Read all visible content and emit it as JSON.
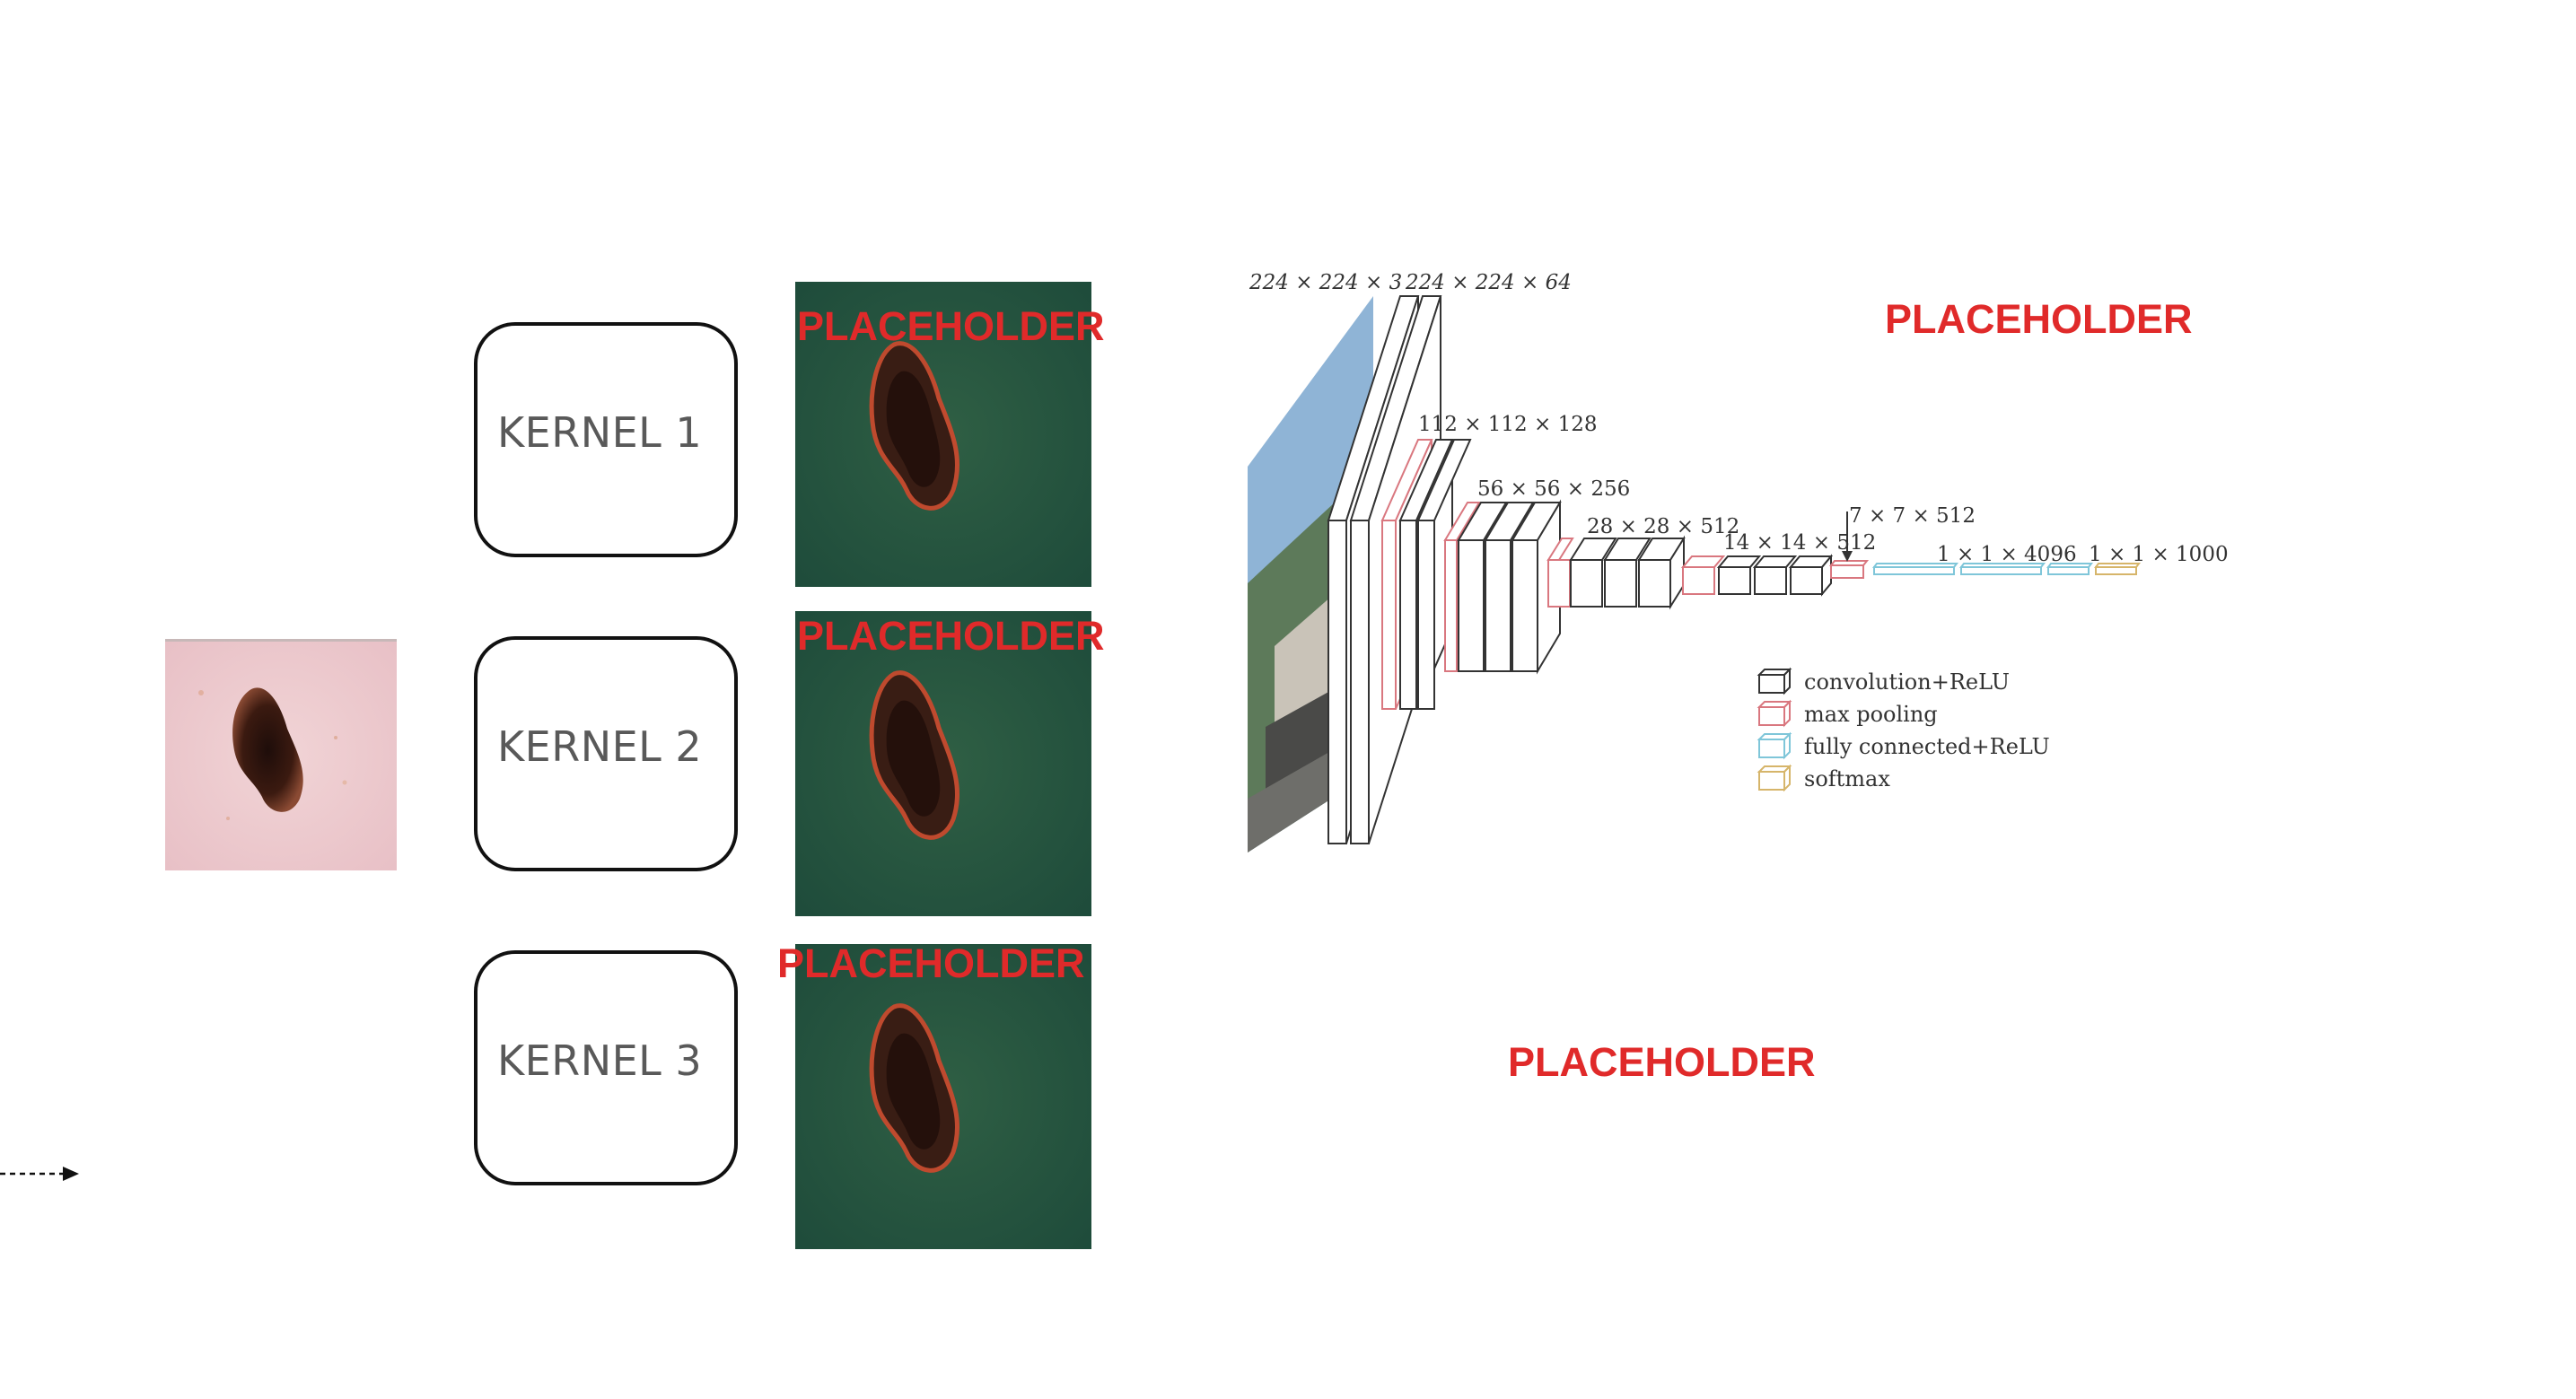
{
  "kernels": [
    {
      "label": "KERNEL 1"
    },
    {
      "label": "KERNEL 2"
    },
    {
      "label": "KERNEL 3"
    }
  ],
  "feature_maps": [
    {
      "placeholder": "PLACEHOLDER"
    },
    {
      "placeholder": "PLACEHOLDER"
    },
    {
      "placeholder": "PLACEHOLDER"
    }
  ],
  "network": {
    "dims": {
      "input": "224 × 224 × 3",
      "conv1": "224 × 224 × 64",
      "conv2": "112 × 112 × 128",
      "conv3": "56 × 56 × 256",
      "conv4": "28 × 28 × 512",
      "conv5": "14 × 14 × 512",
      "pool5": "7 × 7 × 512",
      "fc1": "1 × 1 × 4096",
      "fc2": "1 × 1 × 1000"
    },
    "legend": [
      {
        "label": "convolution+ReLU",
        "color": "#333333"
      },
      {
        "label": "max pooling",
        "color": "#d9777f"
      },
      {
        "label": "fully connected+ReLU",
        "color": "#7fc6d9"
      },
      {
        "label": "softmax",
        "color": "#d6b56a"
      }
    ]
  },
  "placeholders": {
    "top_right": "PLACEHOLDER",
    "bottom": "PLACEHOLDER"
  },
  "colors": {
    "placeholder": "#e02a2a",
    "conv": "#333333",
    "pool": "#d9777f",
    "fc": "#7fc6d9",
    "softmax": "#d6b56a"
  }
}
